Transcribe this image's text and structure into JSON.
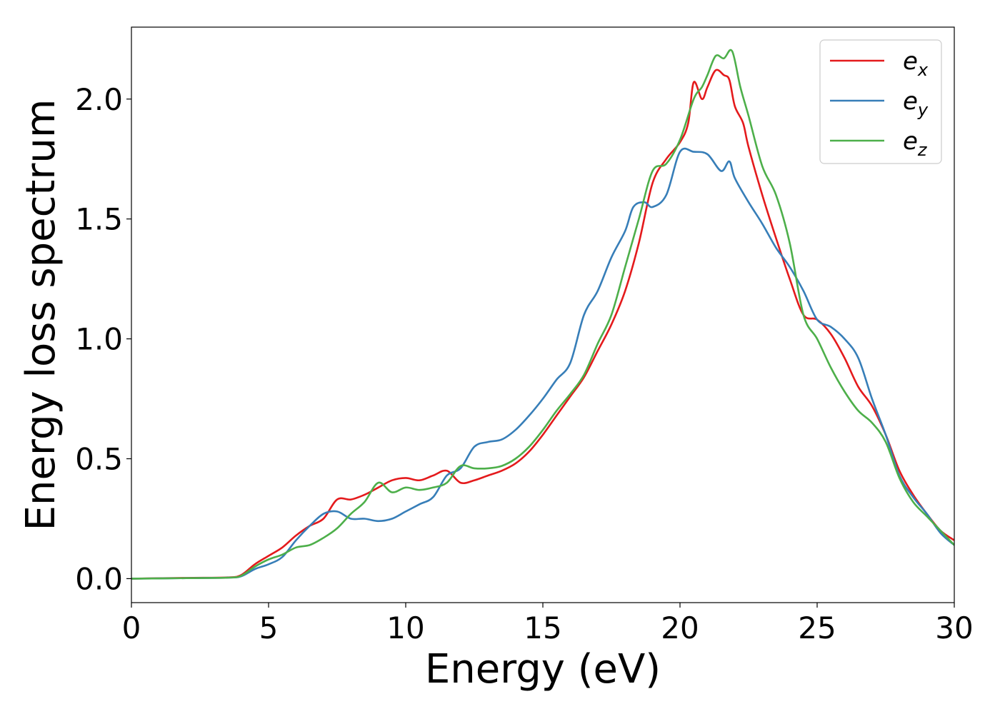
{
  "chart_data": {
    "type": "line",
    "title": "",
    "xlabel": "Energy (eV)",
    "ylabel": "Energy loss spectrum",
    "xlim": [
      0,
      30
    ],
    "ylim": [
      -0.1,
      2.3
    ],
    "x_ticks": [
      0,
      5,
      10,
      15,
      20,
      25,
      30
    ],
    "x_tick_labels": [
      "0",
      "5",
      "10",
      "15",
      "20",
      "25",
      "30"
    ],
    "y_ticks": [
      0.0,
      0.5,
      1.0,
      1.5,
      2.0
    ],
    "y_tick_labels": [
      "0.0",
      "0.5",
      "1.0",
      "1.5",
      "2.0"
    ],
    "grid": false,
    "legend_position": "top-right",
    "series": [
      {
        "name": "e_x",
        "label_main": "e",
        "label_sub": "x",
        "color": "#e41a1c",
        "points": [
          [
            0,
            0
          ],
          [
            2,
            0.003
          ],
          [
            3.5,
            0.005
          ],
          [
            4,
            0.015
          ],
          [
            4.5,
            0.06
          ],
          [
            5,
            0.095
          ],
          [
            5.5,
            0.13
          ],
          [
            6,
            0.18
          ],
          [
            6.5,
            0.22
          ],
          [
            7,
            0.25
          ],
          [
            7.5,
            0.33
          ],
          [
            8,
            0.33
          ],
          [
            8.5,
            0.35
          ],
          [
            9,
            0.38
          ],
          [
            9.5,
            0.41
          ],
          [
            10,
            0.42
          ],
          [
            10.5,
            0.41
          ],
          [
            11,
            0.43
          ],
          [
            11.5,
            0.45
          ],
          [
            12,
            0.4
          ],
          [
            12.5,
            0.41
          ],
          [
            13,
            0.43
          ],
          [
            13.5,
            0.45
          ],
          [
            14,
            0.48
          ],
          [
            14.5,
            0.53
          ],
          [
            15,
            0.6
          ],
          [
            15.5,
            0.68
          ],
          [
            16,
            0.76
          ],
          [
            16.5,
            0.84
          ],
          [
            17,
            0.95
          ],
          [
            17.5,
            1.06
          ],
          [
            18,
            1.2
          ],
          [
            18.5,
            1.4
          ],
          [
            19,
            1.65
          ],
          [
            19.5,
            1.75
          ],
          [
            20,
            1.82
          ],
          [
            20.3,
            1.9
          ],
          [
            20.5,
            2.07
          ],
          [
            20.8,
            2.0
          ],
          [
            21,
            2.05
          ],
          [
            21.3,
            2.12
          ],
          [
            21.6,
            2.1
          ],
          [
            21.8,
            2.08
          ],
          [
            22,
            1.97
          ],
          [
            22.3,
            1.9
          ],
          [
            22.5,
            1.8
          ],
          [
            23,
            1.6
          ],
          [
            23.5,
            1.42
          ],
          [
            24,
            1.25
          ],
          [
            24.5,
            1.1
          ],
          [
            25,
            1.08
          ],
          [
            25.5,
            1.02
          ],
          [
            26,
            0.92
          ],
          [
            26.5,
            0.8
          ],
          [
            27,
            0.72
          ],
          [
            27.5,
            0.6
          ],
          [
            28,
            0.45
          ],
          [
            28.5,
            0.35
          ],
          [
            29,
            0.27
          ],
          [
            29.5,
            0.2
          ],
          [
            30,
            0.16
          ]
        ]
      },
      {
        "name": "e_y",
        "label_main": "e",
        "label_sub": "y",
        "color": "#377eb8",
        "points": [
          [
            0,
            0
          ],
          [
            2,
            0.002
          ],
          [
            3.5,
            0.004
          ],
          [
            4,
            0.01
          ],
          [
            4.5,
            0.04
          ],
          [
            5,
            0.06
          ],
          [
            5.5,
            0.09
          ],
          [
            6,
            0.16
          ],
          [
            6.5,
            0.22
          ],
          [
            7,
            0.27
          ],
          [
            7.5,
            0.28
          ],
          [
            8,
            0.25
          ],
          [
            8.5,
            0.25
          ],
          [
            9,
            0.24
          ],
          [
            9.5,
            0.25
          ],
          [
            10,
            0.28
          ],
          [
            10.5,
            0.31
          ],
          [
            11,
            0.34
          ],
          [
            11.5,
            0.43
          ],
          [
            12,
            0.46
          ],
          [
            12.5,
            0.55
          ],
          [
            13,
            0.57
          ],
          [
            13.5,
            0.58
          ],
          [
            14,
            0.62
          ],
          [
            14.5,
            0.68
          ],
          [
            15,
            0.75
          ],
          [
            15.5,
            0.83
          ],
          [
            16,
            0.9
          ],
          [
            16.5,
            1.1
          ],
          [
            17,
            1.2
          ],
          [
            17.5,
            1.34
          ],
          [
            18,
            1.45
          ],
          [
            18.3,
            1.55
          ],
          [
            18.7,
            1.57
          ],
          [
            19,
            1.55
          ],
          [
            19.5,
            1.6
          ],
          [
            20,
            1.78
          ],
          [
            20.5,
            1.78
          ],
          [
            21,
            1.77
          ],
          [
            21.5,
            1.7
          ],
          [
            21.8,
            1.74
          ],
          [
            22,
            1.67
          ],
          [
            22.5,
            1.57
          ],
          [
            23,
            1.48
          ],
          [
            23.5,
            1.38
          ],
          [
            24,
            1.3
          ],
          [
            24.5,
            1.2
          ],
          [
            25,
            1.08
          ],
          [
            25.5,
            1.05
          ],
          [
            26,
            1.0
          ],
          [
            26.5,
            0.92
          ],
          [
            27,
            0.75
          ],
          [
            27.5,
            0.6
          ],
          [
            28,
            0.43
          ],
          [
            28.5,
            0.34
          ],
          [
            29,
            0.27
          ],
          [
            29.5,
            0.19
          ],
          [
            30,
            0.14
          ]
        ]
      },
      {
        "name": "e_z",
        "label_main": "e",
        "label_sub": "z",
        "color": "#4daf4a",
        "points": [
          [
            0,
            0
          ],
          [
            2,
            0.002
          ],
          [
            3.5,
            0.004
          ],
          [
            4,
            0.012
          ],
          [
            4.5,
            0.05
          ],
          [
            5,
            0.08
          ],
          [
            5.5,
            0.1
          ],
          [
            6,
            0.13
          ],
          [
            6.5,
            0.14
          ],
          [
            7,
            0.17
          ],
          [
            7.5,
            0.21
          ],
          [
            8,
            0.27
          ],
          [
            8.5,
            0.32
          ],
          [
            9,
            0.4
          ],
          [
            9.5,
            0.36
          ],
          [
            10,
            0.38
          ],
          [
            10.5,
            0.37
          ],
          [
            11,
            0.38
          ],
          [
            11.5,
            0.4
          ],
          [
            12,
            0.47
          ],
          [
            12.5,
            0.46
          ],
          [
            13,
            0.46
          ],
          [
            13.5,
            0.47
          ],
          [
            14,
            0.5
          ],
          [
            14.5,
            0.55
          ],
          [
            15,
            0.62
          ],
          [
            15.5,
            0.7
          ],
          [
            16,
            0.77
          ],
          [
            16.5,
            0.85
          ],
          [
            17,
            0.98
          ],
          [
            17.5,
            1.1
          ],
          [
            18,
            1.3
          ],
          [
            18.5,
            1.5
          ],
          [
            19,
            1.7
          ],
          [
            19.5,
            1.73
          ],
          [
            20,
            1.83
          ],
          [
            20.5,
            2.0
          ],
          [
            20.8,
            2.05
          ],
          [
            21,
            2.1
          ],
          [
            21.3,
            2.18
          ],
          [
            21.6,
            2.17
          ],
          [
            21.9,
            2.2
          ],
          [
            22.2,
            2.05
          ],
          [
            22.5,
            1.93
          ],
          [
            23,
            1.72
          ],
          [
            23.5,
            1.6
          ],
          [
            24,
            1.4
          ],
          [
            24.5,
            1.1
          ],
          [
            25,
            1.0
          ],
          [
            25.5,
            0.88
          ],
          [
            26,
            0.78
          ],
          [
            26.5,
            0.7
          ],
          [
            27,
            0.65
          ],
          [
            27.5,
            0.57
          ],
          [
            28,
            0.42
          ],
          [
            28.5,
            0.32
          ],
          [
            29,
            0.26
          ],
          [
            29.5,
            0.2
          ],
          [
            30,
            0.14
          ]
        ]
      }
    ]
  }
}
